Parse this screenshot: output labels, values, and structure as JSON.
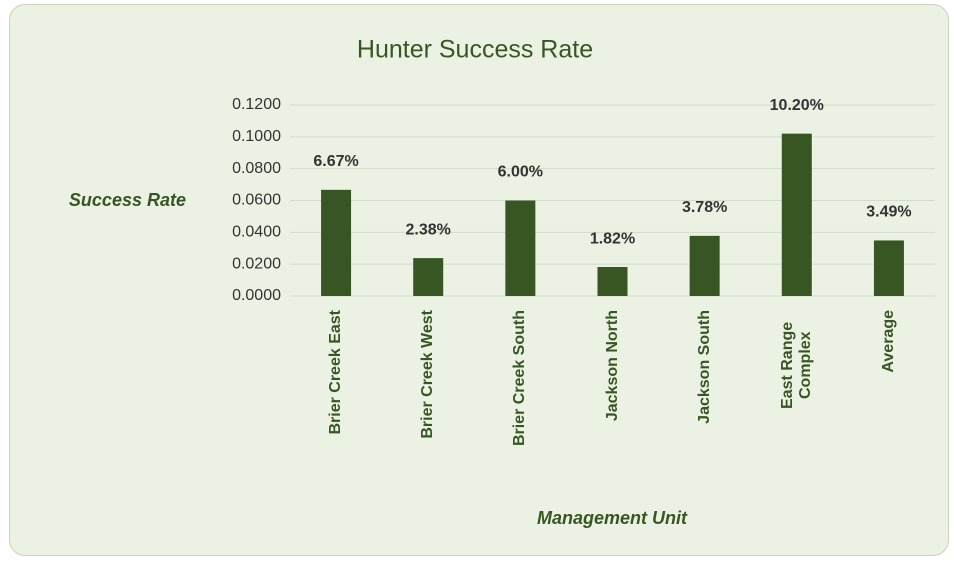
{
  "chart_data": {
    "type": "bar",
    "title": "Hunter Success Rate",
    "ylabel": "Success Rate",
    "xlabel": "Management Unit",
    "categories": [
      "Brier Creek East",
      "Brier Creek West",
      "Brier Creek South",
      "Jackson North",
      "Jackson South",
      "East Range Complex",
      "Average"
    ],
    "values": [
      0.0667,
      0.0238,
      0.06,
      0.0182,
      0.0378,
      0.102,
      0.0349
    ],
    "value_labels": [
      "6.67%",
      "2.38%",
      "6.00%",
      "1.82%",
      "3.78%",
      "10.20%",
      "3.49%"
    ],
    "color": "#375623",
    "ylim": [
      0,
      0.12
    ],
    "yticks": [
      {
        "value": 0,
        "label": "0.0000"
      },
      {
        "value": 0.02,
        "label": "0.0200"
      },
      {
        "value": 0.04,
        "label": "0.0400"
      },
      {
        "value": 0.06,
        "label": "0.0600"
      },
      {
        "value": 0.08,
        "label": "0.0800"
      },
      {
        "value": 0.1,
        "label": "0.1000"
      },
      {
        "value": 0.12,
        "label": "0.1200"
      }
    ],
    "grid": true
  }
}
